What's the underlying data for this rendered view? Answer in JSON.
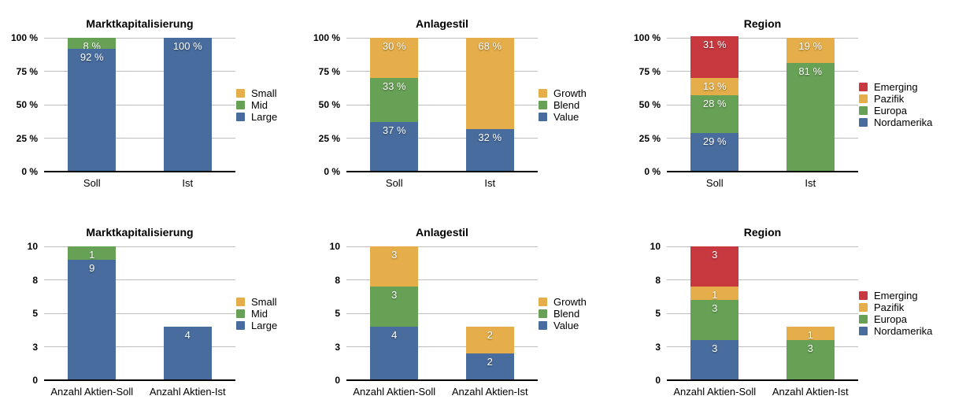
{
  "colors": {
    "blue": "#486c9e",
    "green": "#67a156",
    "orange": "#e5ae4a",
    "red": "#c8383f",
    "gridline": "#bdbdbd",
    "axis": "#000000",
    "bar_label": "#ffffff",
    "text": "#000000"
  },
  "chart_data": [
    {
      "type": "stacked-bar",
      "title": "Marktkapitalisierung",
      "unit": "%",
      "ymax": 100,
      "ylim": [
        0,
        100
      ],
      "grid": true,
      "legend_position": "right",
      "categories": [
        "Soll",
        "Ist"
      ],
      "yticks": [
        {
          "label": "100 %",
          "pos": 100
        },
        {
          "label": "75 %",
          "pos": 75
        },
        {
          "label": "50 %",
          "pos": 50
        },
        {
          "label": "25 %",
          "pos": 25
        },
        {
          "label": "0 %",
          "pos": 0
        }
      ],
      "series": [
        {
          "name": "Small",
          "color": "orange",
          "values": [
            0,
            0
          ],
          "labels": [
            "",
            ""
          ]
        },
        {
          "name": "Mid",
          "color": "green",
          "values": [
            8,
            0
          ],
          "labels": [
            "8 %",
            ""
          ]
        },
        {
          "name": "Large",
          "color": "blue",
          "values": [
            92,
            100
          ],
          "labels": [
            "92 %",
            "100 %"
          ]
        }
      ]
    },
    {
      "type": "stacked-bar",
      "title": "Anlagestil",
      "unit": "%",
      "ymax": 100,
      "ylim": [
        0,
        100
      ],
      "grid": true,
      "legend_position": "right",
      "categories": [
        "Soll",
        "Ist"
      ],
      "yticks": [
        {
          "label": "100 %",
          "pos": 100
        },
        {
          "label": "75 %",
          "pos": 75
        },
        {
          "label": "50 %",
          "pos": 50
        },
        {
          "label": "25 %",
          "pos": 25
        },
        {
          "label": "0 %",
          "pos": 0
        }
      ],
      "series": [
        {
          "name": "Growth",
          "color": "orange",
          "values": [
            30,
            68
          ],
          "labels": [
            "30 %",
            "68 %"
          ]
        },
        {
          "name": "Blend",
          "color": "green",
          "values": [
            33,
            0
          ],
          "labels": [
            "33 %",
            ""
          ]
        },
        {
          "name": "Value",
          "color": "blue",
          "values": [
            37,
            32
          ],
          "labels": [
            "37 %",
            "32 %"
          ]
        }
      ]
    },
    {
      "type": "stacked-bar",
      "title": "Region",
      "unit": "%",
      "ymax": 100,
      "ylim": [
        0,
        100
      ],
      "grid": true,
      "legend_position": "right",
      "categories": [
        "Soll",
        "Ist"
      ],
      "yticks": [
        {
          "label": "100 %",
          "pos": 100
        },
        {
          "label": "75 %",
          "pos": 75
        },
        {
          "label": "50 %",
          "pos": 50
        },
        {
          "label": "25 %",
          "pos": 25
        },
        {
          "label": "0 %",
          "pos": 0
        }
      ],
      "series": [
        {
          "name": "Emerging",
          "color": "red",
          "values": [
            31,
            0
          ],
          "labels": [
            "31 %",
            ""
          ]
        },
        {
          "name": "Pazifik",
          "color": "orange",
          "values": [
            13,
            19
          ],
          "labels": [
            "13 %",
            "19 %"
          ]
        },
        {
          "name": "Europa",
          "color": "green",
          "values": [
            28,
            81
          ],
          "labels": [
            "28 %",
            "81 %"
          ]
        },
        {
          "name": "Nordamerika",
          "color": "blue",
          "values": [
            29,
            0
          ],
          "labels": [
            "29 %",
            ""
          ]
        }
      ]
    },
    {
      "type": "stacked-bar",
      "title": "Marktkapitalisierung",
      "unit": "count",
      "ymax": 10,
      "ylim": [
        0,
        10
      ],
      "grid": true,
      "legend_position": "right",
      "categories": [
        "Anzahl Aktien-Soll",
        "Anzahl Aktien-Ist"
      ],
      "yticks": [
        {
          "label": "10",
          "pos": 10
        },
        {
          "label": "8",
          "pos": 7.5
        },
        {
          "label": "5",
          "pos": 5
        },
        {
          "label": "3",
          "pos": 2.5
        },
        {
          "label": "0",
          "pos": 0
        }
      ],
      "series": [
        {
          "name": "Small",
          "color": "orange",
          "values": [
            0,
            0
          ],
          "labels": [
            "",
            ""
          ]
        },
        {
          "name": "Mid",
          "color": "green",
          "values": [
            1,
            0
          ],
          "labels": [
            "1",
            ""
          ]
        },
        {
          "name": "Large",
          "color": "blue",
          "values": [
            9,
            4
          ],
          "labels": [
            "9",
            "4"
          ]
        }
      ]
    },
    {
      "type": "stacked-bar",
      "title": "Anlagestil",
      "unit": "count",
      "ymax": 10,
      "ylim": [
        0,
        10
      ],
      "grid": true,
      "legend_position": "right",
      "categories": [
        "Anzahl Aktien-Soll",
        "Anzahl Aktien-Ist"
      ],
      "yticks": [
        {
          "label": "10",
          "pos": 10
        },
        {
          "label": "8",
          "pos": 7.5
        },
        {
          "label": "5",
          "pos": 5
        },
        {
          "label": "3",
          "pos": 2.5
        },
        {
          "label": "0",
          "pos": 0
        }
      ],
      "series": [
        {
          "name": "Growth",
          "color": "orange",
          "values": [
            3,
            2
          ],
          "labels": [
            "3",
            "2"
          ]
        },
        {
          "name": "Blend",
          "color": "green",
          "values": [
            3,
            0
          ],
          "labels": [
            "3",
            ""
          ]
        },
        {
          "name": "Value",
          "color": "blue",
          "values": [
            4,
            2
          ],
          "labels": [
            "4",
            "2"
          ]
        }
      ]
    },
    {
      "type": "stacked-bar",
      "title": "Region",
      "unit": "count",
      "ymax": 10,
      "ylim": [
        0,
        10
      ],
      "grid": true,
      "legend_position": "right",
      "categories": [
        "Anzahl Aktien-Soll",
        "Anzahl Aktien-Ist"
      ],
      "yticks": [
        {
          "label": "10",
          "pos": 10
        },
        {
          "label": "8",
          "pos": 7.5
        },
        {
          "label": "5",
          "pos": 5
        },
        {
          "label": "3",
          "pos": 2.5
        },
        {
          "label": "0",
          "pos": 0
        }
      ],
      "series": [
        {
          "name": "Emerging",
          "color": "red",
          "values": [
            3,
            0
          ],
          "labels": [
            "3",
            ""
          ]
        },
        {
          "name": "Pazifik",
          "color": "orange",
          "values": [
            1,
            1
          ],
          "labels": [
            "1",
            "1"
          ]
        },
        {
          "name": "Europa",
          "color": "green",
          "values": [
            3,
            3
          ],
          "labels": [
            "3",
            "3"
          ]
        },
        {
          "name": "Nordamerika",
          "color": "blue",
          "values": [
            3,
            0
          ],
          "labels": [
            "3",
            ""
          ]
        }
      ]
    }
  ]
}
